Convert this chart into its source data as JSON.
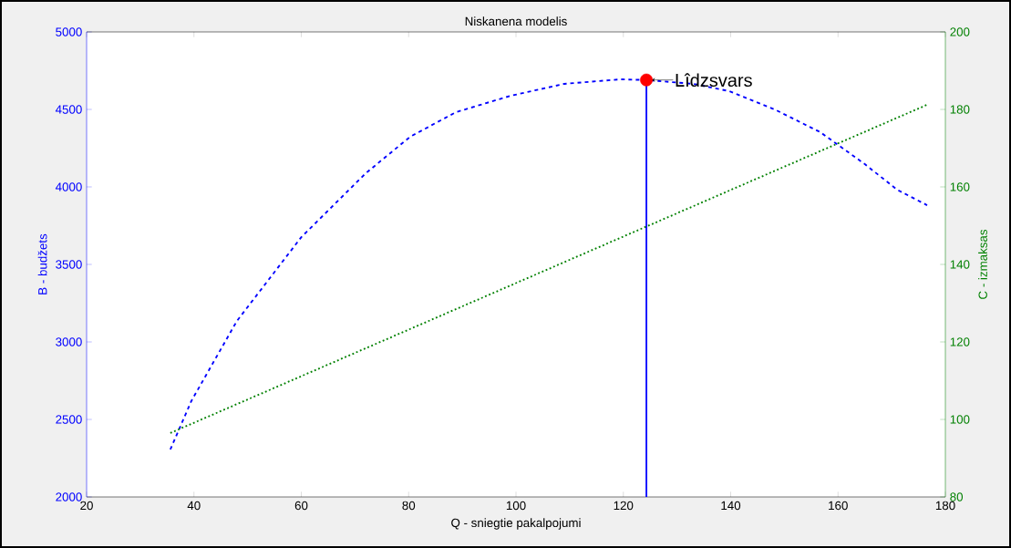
{
  "chart_data": {
    "type": "line",
    "title": "Niskanena modelis",
    "xlabel": "Q - sniegtie pakalpojumi",
    "ylabel": "B - budžets",
    "y2label": "C - izmaksas",
    "xlim": [
      20,
      180
    ],
    "xticks": [
      20,
      40,
      60,
      80,
      100,
      120,
      140,
      160,
      180
    ],
    "ylim": [
      2000,
      5000
    ],
    "yticks": [
      2000,
      2500,
      3000,
      3500,
      4000,
      4500,
      5000
    ],
    "y2lim": [
      80,
      200
    ],
    "y2ticks": [
      80,
      100,
      120,
      140,
      160,
      180,
      200
    ],
    "series": [
      {
        "color": "#0000ff",
        "line_style": "dashed",
        "x": [
          35.6,
          39.5,
          48,
          60,
          72,
          80.3,
          88.8,
          99,
          109,
          119.4,
          124.1,
          133,
          139.7,
          148.2,
          156.7,
          165,
          171,
          176.6
        ],
        "values": [
          2306,
          2618,
          3135,
          3676,
          4088,
          4324,
          4482,
          4588,
          4665,
          4694,
          4690,
          4665,
          4618,
          4500,
          4353,
          4147,
          3982,
          3882
        ]
      },
      {
        "type": "line",
        "color": "#008000",
        "line_style": "dotted",
        "axis": "y2",
        "x": [
          35.6,
          124,
          176.6
        ],
        "values": [
          96.5,
          149.6,
          181.2
        ]
      },
      {
        "color": "#0000ff",
        "line_style": "solid",
        "x": [
          124.3,
          124.3
        ],
        "values": [
          2000,
          4690
        ]
      },
      {
        "type": "scatter",
        "color": "#ff0000",
        "marker": "circle",
        "x": [
          124.3
        ],
        "values": [
          4690
        ]
      }
    ],
    "annotations": [
      {
        "text": "Lîdzsvars",
        "x": 124.3,
        "y": 4690
      }
    ]
  }
}
